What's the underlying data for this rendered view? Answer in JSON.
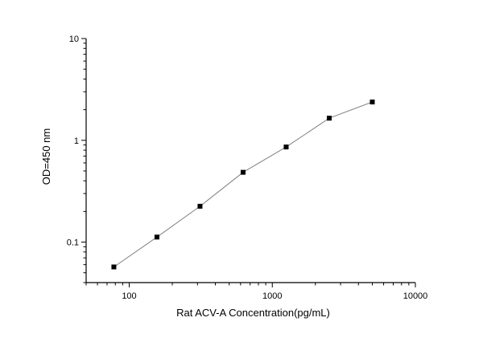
{
  "chart_data": {
    "type": "line",
    "xlabel": "Rat ACV-A Concentration(pg/mL)",
    "ylabel": "OD=450 nm",
    "x_scale": "log",
    "y_scale": "log",
    "xlim": [
      50,
      10000
    ],
    "ylim": [
      0.04,
      10
    ],
    "x_tick_labels": [
      "100",
      "1000",
      "10000"
    ],
    "y_tick_labels": [
      "0.1",
      "1",
      "10"
    ],
    "grid": false,
    "legend": "none",
    "series": [
      {
        "marker": "square",
        "color": "#000000",
        "line_color": "#808080",
        "x": [
          78.125,
          156.25,
          312.5,
          625,
          1250,
          2500,
          5000
        ],
        "y": [
          0.057,
          0.112,
          0.225,
          0.485,
          0.86,
          1.65,
          2.38
        ]
      }
    ]
  }
}
